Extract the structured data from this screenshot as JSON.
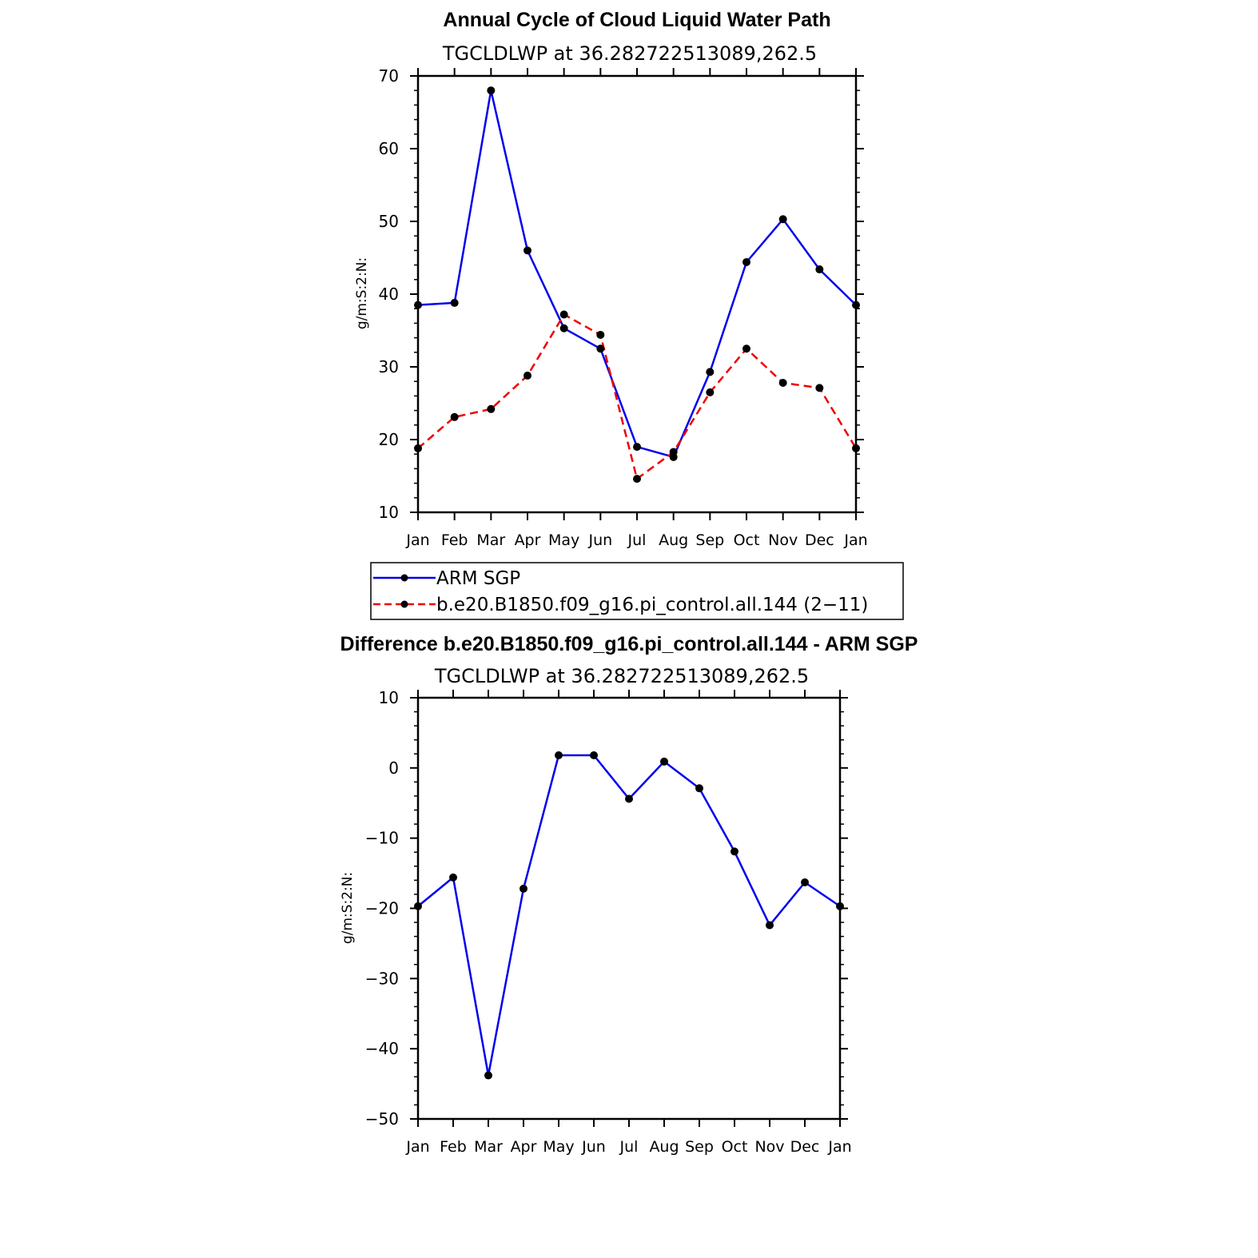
{
  "chart_data": [
    {
      "type": "line",
      "title": "Annual Cycle of Cloud Liquid Water Path",
      "subtitle": "TGCLDLWP  at  36.282722513089,262.5",
      "xlabel": "",
      "ylabel": "g/m:S:2:N:",
      "categories": [
        "Jan",
        "Feb",
        "Mar",
        "Apr",
        "May",
        "Jun",
        "Jul",
        "Aug",
        "Sep",
        "Oct",
        "Nov",
        "Dec",
        "Jan"
      ],
      "ylim": [
        10,
        70
      ],
      "yticks": [
        10,
        20,
        30,
        40,
        50,
        60,
        70
      ],
      "legend_position": "below",
      "series": [
        {
          "name": "ARM  SGP",
          "color": "#0000ee",
          "dash": "solid",
          "values": [
            38.5,
            38.8,
            68.0,
            46.0,
            35.3,
            32.5,
            19.0,
            17.6,
            29.3,
            44.4,
            50.3,
            43.4,
            38.5
          ]
        },
        {
          "name": "b.e20.B1850.f09_g16.pi_control.all.144  (2−11)",
          "color": "#ee0000",
          "dash": "dashed",
          "values": [
            18.8,
            23.1,
            24.2,
            28.8,
            37.2,
            34.4,
            14.6,
            18.3,
            26.5,
            32.5,
            27.8,
            27.1,
            18.8
          ]
        }
      ]
    },
    {
      "type": "line",
      "title": "Difference b.e20.B1850.f09_g16.pi_control.all.144 - ARM SGP",
      "subtitle": "TGCLDLWP  at  36.282722513089,262.5",
      "xlabel": "",
      "ylabel": "g/m:S:2:N:",
      "categories": [
        "Jan",
        "Feb",
        "Mar",
        "Apr",
        "May",
        "Jun",
        "Jul",
        "Aug",
        "Sep",
        "Oct",
        "Nov",
        "Dec",
        "Jan"
      ],
      "ylim": [
        -50,
        10
      ],
      "yticks": [
        -50,
        -40,
        -30,
        -20,
        -10,
        0,
        10
      ],
      "ytick_labels": [
        "−50",
        "−40",
        "−30",
        "−20",
        "−10",
        "0",
        "10"
      ],
      "series": [
        {
          "color": "#0000ee",
          "dash": "solid",
          "values": [
            -19.7,
            -15.6,
            -43.8,
            -17.2,
            1.8,
            1.8,
            -4.4,
            0.9,
            -2.9,
            -11.9,
            -22.4,
            -16.3,
            -19.7
          ]
        }
      ]
    }
  ]
}
